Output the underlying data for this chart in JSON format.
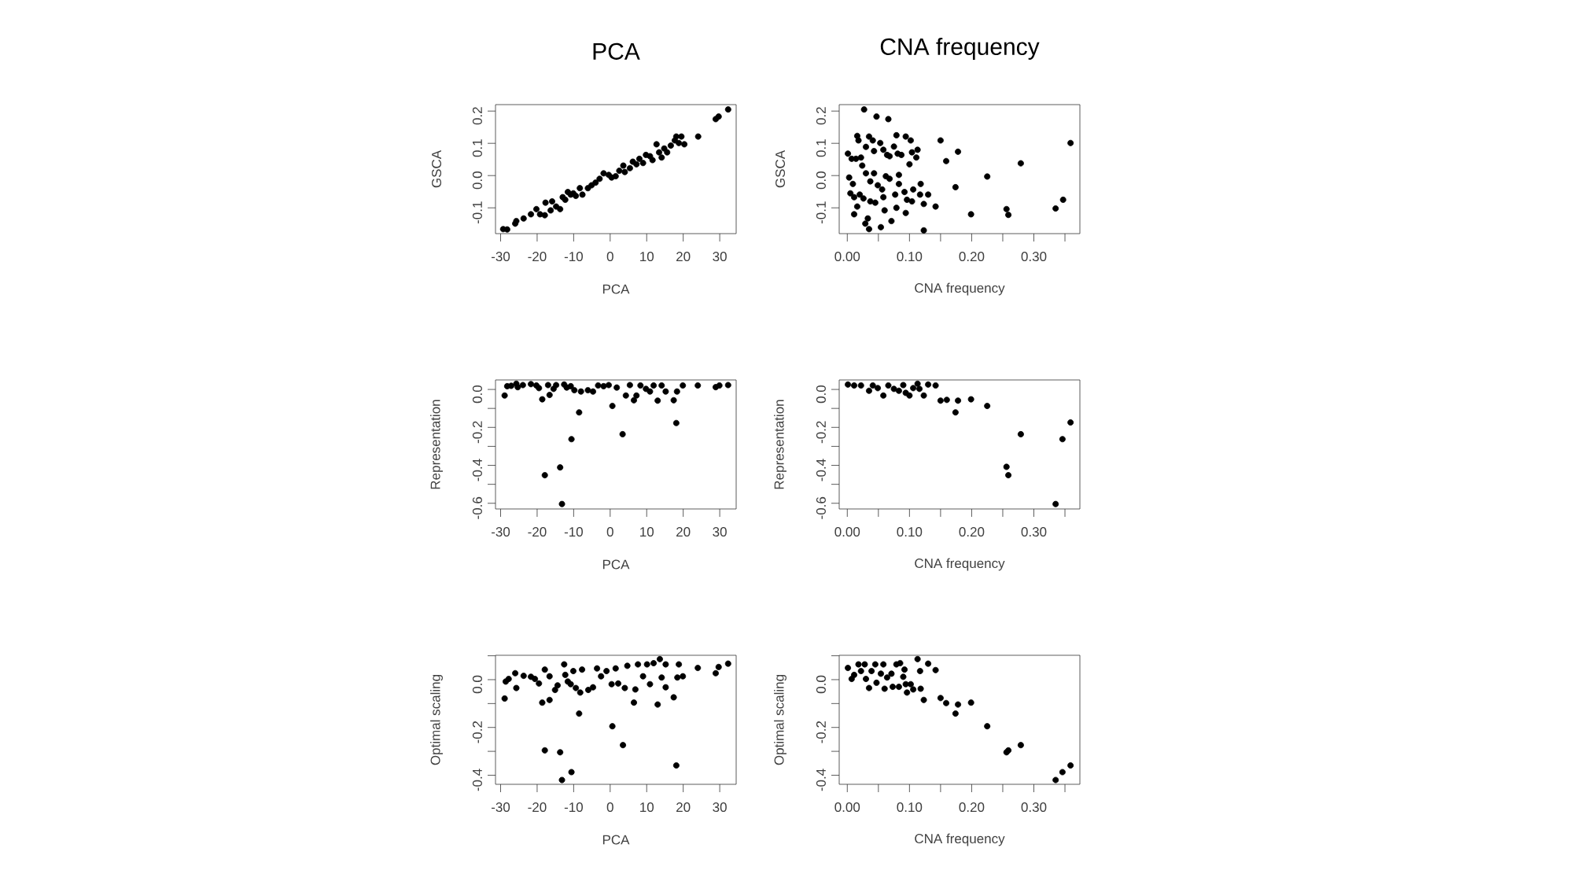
{
  "chart_data": [
    {
      "type": "scatter",
      "title": "PCA",
      "xlabel": "PCA",
      "ylabel": "GSCA",
      "color": "#000000",
      "marker": "circle",
      "xlim": [
        -31.4,
        34.5
      ],
      "ylim": [
        -0.18,
        0.22
      ],
      "xticks": [
        -30,
        -20,
        -10,
        0,
        10,
        20,
        30
      ],
      "yticks": [
        -0.1,
        {
          "value": 0,
          "label": "0.0"
        },
        0.1,
        0.2
      ],
      "x": [
        -29.3,
        -28.2,
        -26,
        -25.7,
        -23.7,
        -21.7,
        -20.2,
        -19.2,
        -17.9,
        -17.7,
        -15.9,
        -16.3,
        -14.8,
        -13.7,
        -13,
        -12.3,
        -11.6,
        -10.8,
        -10.1,
        -9.4,
        -8.3,
        -7.6,
        -6.1,
        -5.1,
        -4,
        -2.9,
        -1.8,
        -0.4,
        0.4,
        1.5,
        2.5,
        3.6,
        4,
        5.4,
        6.2,
        7.2,
        8,
        9,
        9.8,
        10.9,
        11.6,
        12.7,
        13.4,
        14.1,
        14.8,
        15.6,
        16.6,
        17.7,
        18.1,
        18.8,
        19.5,
        20.3,
        24.1,
        28.9,
        29.7,
        32.3
      ],
      "values": [
        -0.166,
        -0.167,
        -0.149,
        -0.141,
        -0.133,
        -0.12,
        -0.104,
        -0.12,
        -0.123,
        -0.084,
        -0.08,
        -0.108,
        -0.096,
        -0.104,
        -0.067,
        -0.075,
        -0.051,
        -0.059,
        -0.055,
        -0.063,
        -0.039,
        -0.059,
        -0.039,
        -0.03,
        -0.022,
        -0.01,
        0.007,
        0.002,
        -0.006,
        -0.002,
        0.015,
        0.031,
        0.011,
        0.023,
        0.043,
        0.035,
        0.052,
        0.039,
        0.064,
        0.06,
        0.048,
        0.097,
        0.072,
        0.056,
        0.084,
        0.072,
        0.093,
        0.109,
        0.121,
        0.101,
        0.121,
        0.097,
        0.121,
        0.175,
        0.183,
        0.205
      ]
    },
    {
      "type": "scatter",
      "title": "CNA frequency",
      "xlabel": "CNA frequency",
      "ylabel": "GSCA",
      "color": "#000000",
      "marker": "circle",
      "xlim": [
        -0.013,
        0.374
      ],
      "ylim": [
        -0.18,
        0.22
      ],
      "xticks": [
        {
          "value": 0,
          "label": "0.00"
        },
        {
          "value": 0.05,
          "label": null
        },
        {
          "value": 0.1,
          "label": "0.10"
        },
        {
          "value": 0.15,
          "label": null
        },
        {
          "value": 0.2,
          "label": "0.20"
        },
        {
          "value": 0.25,
          "label": null
        },
        {
          "value": 0.3,
          "label": "0.30"
        },
        {
          "value": 0.35,
          "label": null
        }
      ],
      "yticks": [
        -0.1,
        {
          "value": 0,
          "label": "0.0"
        },
        0.1,
        0.2
      ],
      "x": [
        0.027,
        0.047,
        0.066,
        0.001,
        0.016,
        0.018,
        0.014,
        0.007,
        0.022,
        0.035,
        0.041,
        0.03,
        0.043,
        0.053,
        0.058,
        0.064,
        0.068,
        0.075,
        0.079,
        0.081,
        0.094,
        0.087,
        0.102,
        0.1,
        0.104,
        0.113,
        0.111,
        0.15,
        0.159,
        0.178,
        0.279,
        0.359,
        0.003,
        0.009,
        0.024,
        0.03,
        0.037,
        0.043,
        0.049,
        0.056,
        0.062,
        0.068,
        0.083,
        0.083,
        0.005,
        0.011,
        0.02,
        0.026,
        0.037,
        0.045,
        0.058,
        0.077,
        0.092,
        0.096,
        0.106,
        0.104,
        0.117,
        0.13,
        0.118,
        0.123,
        0.142,
        0.011,
        0.016,
        0.033,
        0.029,
        0.035,
        0.054,
        0.06,
        0.071,
        0.079,
        0.094,
        0.123,
        0.174,
        0.199,
        0.225,
        0.256,
        0.259,
        0.335,
        0.347
      ],
      "values": [
        0.205,
        0.183,
        0.175,
        0.068,
        0.123,
        0.109,
        0.052,
        0.052,
        0.056,
        0.121,
        0.109,
        0.089,
        0.076,
        0.101,
        0.08,
        0.064,
        0.06,
        0.09,
        0.125,
        0.068,
        0.121,
        0.064,
        0.109,
        0.035,
        0.072,
        0.08,
        0.056,
        0.109,
        0.045,
        0.074,
        0.038,
        0.101,
        -0.006,
        -0.026,
        0.031,
        0.007,
        -0.018,
        0.007,
        -0.03,
        -0.043,
        -0.002,
        -0.01,
        0.002,
        -0.026,
        -0.055,
        -0.067,
        -0.059,
        -0.071,
        -0.08,
        -0.084,
        -0.067,
        -0.059,
        -0.051,
        -0.075,
        -0.043,
        -0.08,
        -0.059,
        -0.059,
        -0.026,
        -0.088,
        -0.096,
        -0.12,
        -0.096,
        -0.133,
        -0.149,
        -0.166,
        -0.16,
        -0.108,
        -0.141,
        -0.1,
        -0.116,
        -0.17,
        -0.036,
        -0.12,
        -0.003,
        -0.104,
        -0.122,
        -0.102,
        -0.075
      ]
    },
    {
      "type": "scatter",
      "xlabel": "PCA",
      "ylabel": "Representation",
      "color": "#000000",
      "marker": "circle",
      "xlim": [
        -31.4,
        34.5
      ],
      "ylim": [
        -0.63,
        0.05
      ],
      "xticks": [
        -30,
        -20,
        -10,
        0,
        10,
        20,
        30
      ],
      "yticks": [
        -0.6,
        {
          "value": -0.5,
          "label": null
        },
        -0.4,
        {
          "value": -0.3,
          "label": null
        },
        -0.2,
        {
          "value": -0.1,
          "label": null
        },
        {
          "value": 0,
          "label": "0.0"
        }
      ],
      "x": [
        -28.9,
        -28.2,
        -27.1,
        -25.7,
        -25.3,
        -23.9,
        -21.7,
        -20.2,
        -19.5,
        -18.6,
        -17.9,
        -17,
        -16.6,
        -15.5,
        -14.8,
        -13.7,
        -13.2,
        -12.6,
        -11.9,
        -10.8,
        -10.6,
        -9.8,
        -8.5,
        -8,
        -6.1,
        -4.7,
        -3.3,
        -1.8,
        -0.4,
        0.6,
        1.8,
        3.4,
        4.3,
        5.4,
        6.5,
        7.2,
        8.3,
        9.8,
        10.9,
        11.9,
        13,
        14.1,
        15.2,
        17.4,
        18.1,
        18.3,
        19.9,
        24,
        28.9,
        29.9,
        32.3
      ],
      "values": [
        -0.032,
        0.017,
        0.019,
        0.03,
        0.012,
        0.023,
        0.028,
        0.021,
        0.007,
        -0.052,
        -0.452,
        0.023,
        -0.029,
        0.003,
        0.023,
        -0.411,
        -0.604,
        0.026,
        0.01,
        0.017,
        -0.262,
        -0.004,
        -0.121,
        -0.011,
        -0.004,
        -0.011,
        0.021,
        0.017,
        0.023,
        -0.087,
        0.01,
        -0.236,
        -0.032,
        0.023,
        -0.057,
        -0.032,
        0.021,
        0.003,
        -0.011,
        0.021,
        -0.059,
        0.021,
        -0.011,
        -0.057,
        -0.177,
        -0.011,
        0.021,
        0.021,
        0.012,
        0.021,
        0.023
      ]
    },
    {
      "type": "scatter",
      "xlabel": "CNA frequency",
      "ylabel": "Representation",
      "color": "#000000",
      "marker": "circle",
      "xlim": [
        -0.013,
        0.374
      ],
      "ylim": [
        -0.63,
        0.05
      ],
      "xticks": [
        {
          "value": 0,
          "label": "0.00"
        },
        {
          "value": 0.05,
          "label": null
        },
        {
          "value": 0.1,
          "label": "0.10"
        },
        {
          "value": 0.15,
          "label": null
        },
        {
          "value": 0.2,
          "label": "0.20"
        },
        {
          "value": 0.25,
          "label": null
        },
        {
          "value": 0.3,
          "label": "0.30"
        },
        {
          "value": 0.35,
          "label": null
        }
      ],
      "yticks": [
        -0.6,
        {
          "value": -0.5,
          "label": null
        },
        -0.4,
        {
          "value": -0.3,
          "label": null
        },
        -0.2,
        {
          "value": -0.1,
          "label": null
        },
        {
          "value": 0,
          "label": "0.0"
        }
      ],
      "x": [
        0.001,
        0.011,
        0.022,
        0.035,
        0.041,
        0.049,
        0.058,
        0.066,
        0.075,
        0.083,
        0.09,
        0.094,
        0.1,
        0.106,
        0.113,
        0.116,
        0.123,
        0.13,
        0.142,
        0.15,
        0.16,
        0.174,
        0.178,
        0.199,
        0.225,
        0.256,
        0.259,
        0.279,
        0.335,
        0.346,
        0.359
      ],
      "values": [
        0.026,
        0.021,
        0.021,
        -0.007,
        0.021,
        0.007,
        -0.032,
        0.021,
        0.003,
        -0.007,
        0.023,
        -0.018,
        -0.032,
        0.007,
        0.03,
        0.003,
        -0.032,
        0.026,
        0.021,
        -0.059,
        -0.055,
        -0.121,
        -0.059,
        -0.052,
        -0.087,
        -0.408,
        -0.452,
        -0.236,
        -0.604,
        -0.262,
        -0.174
      ]
    },
    {
      "type": "scatter",
      "xlabel": "PCA",
      "ylabel": "Optimal scaling",
      "color": "#000000",
      "marker": "circle",
      "xlim": [
        -31.4,
        34.5
      ],
      "ylim": [
        -0.438,
        0.102
      ],
      "xticks": [
        -30,
        -20,
        -10,
        0,
        10,
        20,
        30
      ],
      "yticks": [
        -0.4,
        {
          "value": -0.3,
          "label": null
        },
        -0.2,
        {
          "value": -0.1,
          "label": null
        },
        {
          "value": 0,
          "label": "0.0"
        },
        {
          "value": 0.1,
          "label": null
        }
      ],
      "x": [
        -28.9,
        -28.6,
        -27.8,
        -26,
        -25.7,
        -23.7,
        -21.7,
        -20.6,
        -19.5,
        -18.6,
        -17.9,
        -17.9,
        -16.6,
        -16.6,
        -15.1,
        -14.4,
        -13.7,
        -13.2,
        -12.6,
        -12.3,
        -11.6,
        -10.8,
        -10.6,
        -10.1,
        -9.4,
        -8.5,
        -8.2,
        -7.7,
        -6,
        -4.7,
        -3.6,
        -2.5,
        -1,
        0.4,
        0.6,
        1.5,
        2.2,
        3.5,
        4,
        4.7,
        6.5,
        6.9,
        7.6,
        9,
        10.1,
        10.9,
        11.9,
        13,
        13.6,
        14.1,
        15.2,
        15.2,
        17.4,
        18.1,
        18.4,
        18.8,
        19.9,
        24,
        28.9,
        29.7,
        32.3
      ],
      "values": [
        -0.079,
        -0.008,
        0.003,
        0.027,
        -0.035,
        0.016,
        0.012,
        0.003,
        -0.016,
        -0.096,
        0.042,
        -0.296,
        -0.085,
        0.014,
        -0.043,
        -0.024,
        -0.304,
        -0.42,
        0.064,
        0.02,
        -0.008,
        -0.019,
        -0.387,
        0.036,
        -0.035,
        -0.142,
        -0.054,
        0.042,
        -0.043,
        -0.032,
        0.047,
        0.014,
        0.036,
        -0.019,
        -0.195,
        0.047,
        -0.016,
        -0.274,
        -0.035,
        0.058,
        -0.096,
        -0.041,
        0.064,
        0.014,
        0.064,
        -0.019,
        0.069,
        -0.104,
        0.086,
        0.009,
        -0.032,
        0.064,
        -0.074,
        -0.359,
        0.009,
        0.064,
        0.014,
        0.049,
        0.027,
        0.053,
        0.067
      ]
    },
    {
      "type": "scatter",
      "xlabel": "CNA frequency",
      "ylabel": "Optimal scaling",
      "color": "#000000",
      "marker": "circle",
      "xlim": [
        -0.013,
        0.374
      ],
      "ylim": [
        -0.438,
        0.102
      ],
      "xticks": [
        {
          "value": 0,
          "label": "0.00"
        },
        {
          "value": 0.05,
          "label": null
        },
        {
          "value": 0.1,
          "label": "0.10"
        },
        {
          "value": 0.15,
          "label": null
        },
        {
          "value": 0.2,
          "label": "0.20"
        },
        {
          "value": 0.25,
          "label": null
        },
        {
          "value": 0.3,
          "label": "0.30"
        },
        {
          "value": 0.35,
          "label": null
        }
      ],
      "yticks": [
        -0.4,
        {
          "value": -0.3,
          "label": null
        },
        -0.2,
        {
          "value": -0.1,
          "label": null
        },
        {
          "value": 0,
          "label": "0.0"
        },
        {
          "value": 0.1,
          "label": null
        }
      ],
      "x": [
        0.001,
        0.007,
        0.011,
        0.018,
        0.022,
        0.028,
        0.03,
        0.035,
        0.039,
        0.045,
        0.047,
        0.054,
        0.058,
        0.06,
        0.064,
        0.071,
        0.073,
        0.079,
        0.083,
        0.085,
        0.09,
        0.092,
        0.094,
        0.096,
        0.102,
        0.106,
        0.113,
        0.117,
        0.118,
        0.123,
        0.13,
        0.142,
        0.15,
        0.159,
        0.174,
        0.178,
        0.199,
        0.225,
        0.256,
        0.259,
        0.279,
        0.335,
        0.346,
        0.359
      ],
      "values": [
        0.049,
        0.003,
        0.02,
        0.064,
        0.036,
        0.064,
        0.003,
        -0.035,
        0.036,
        0.064,
        -0.013,
        0.025,
        0.064,
        -0.038,
        0.009,
        0.025,
        -0.03,
        0.064,
        -0.03,
        0.069,
        0.012,
        0.042,
        -0.019,
        -0.054,
        -0.019,
        -0.041,
        0.086,
        0.036,
        -0.038,
        -0.085,
        0.067,
        0.04,
        -0.077,
        -0.098,
        -0.142,
        -0.104,
        -0.096,
        -0.195,
        -0.304,
        -0.296,
        -0.274,
        -0.42,
        -0.387,
        -0.359
      ]
    }
  ]
}
